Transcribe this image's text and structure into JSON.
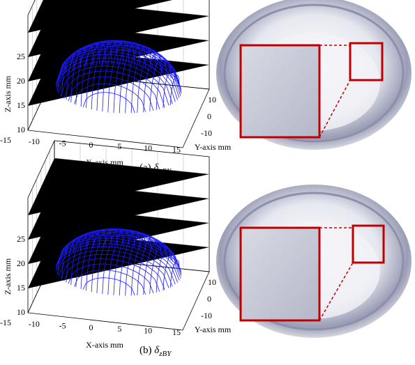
{
  "panels": [
    {
      "caption": {
        "label": "(a)",
        "symbol": "δ",
        "subscript": "xBY"
      },
      "z_axis_label": "Z-axis mm",
      "x_axis_label": "X-axis mm",
      "y_axis_label": "Y-axis mm",
      "z_ticks": [
        25,
        20,
        15,
        10
      ],
      "x_ticks": [
        -15,
        -10,
        -5,
        0,
        5,
        10,
        15
      ],
      "y_ticks": [
        10,
        0,
        -10
      ]
    },
    {
      "caption": {
        "label": "(b)",
        "symbol": "δ",
        "subscript": "zBY"
      },
      "z_axis_label": "Z-axis mm",
      "x_axis_label": "X-axis mm",
      "y_axis_label": "Y-axis mm",
      "z_ticks": [
        25,
        20,
        15,
        10
      ],
      "x_ticks": [
        -15,
        -10,
        -5,
        0,
        5,
        10,
        15
      ],
      "y_ticks": [
        10,
        0,
        -10
      ]
    }
  ]
}
